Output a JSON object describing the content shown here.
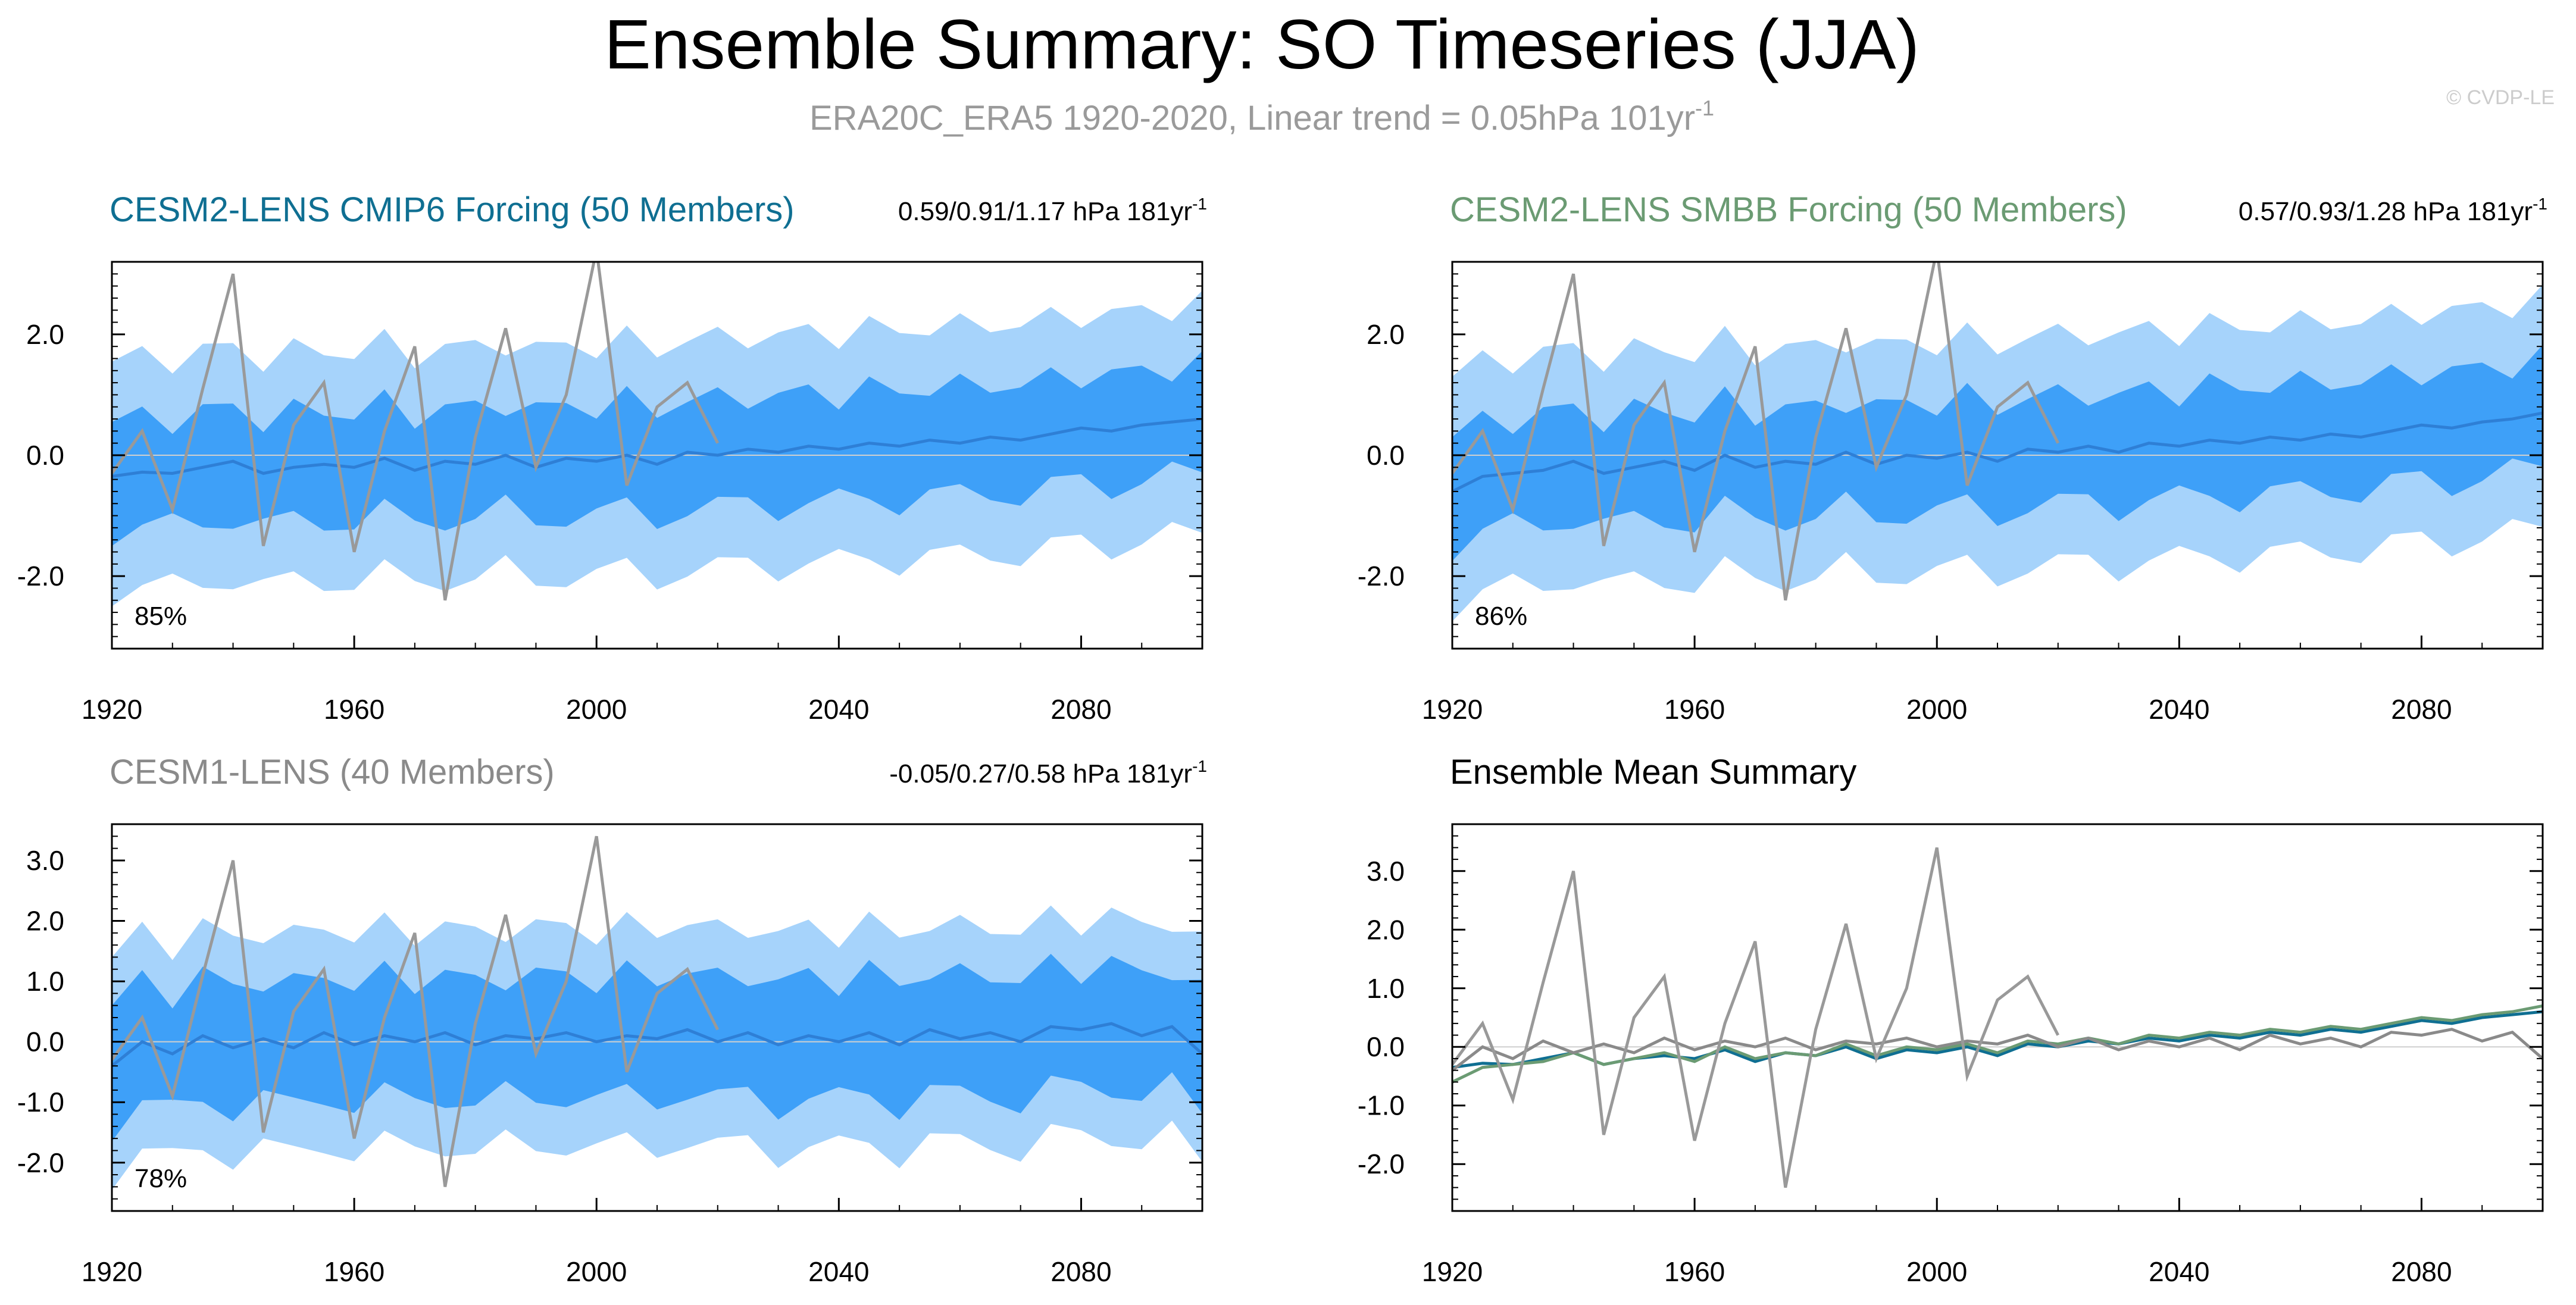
{
  "figure": {
    "title": "Ensemble Summary: SO Timeseries (JJA)",
    "subtitle": "ERA20C_ERA5 1920-2020, Linear trend = 0.05hPa 101yr",
    "subtitle_sup": "-1",
    "watermark": "© CVDP-LE",
    "colors": {
      "outer_band": "#a6d3fb",
      "inner_band": "#3ea0f8",
      "ensemble_mean": "#2e7fd6",
      "observations": "#999999",
      "cesm2_cmip6": "#0f6f92",
      "cesm2_smbb": "#6b9b73",
      "cesm1": "#8a8a8a",
      "zero_line": "#cfcfcf"
    }
  },
  "chart_data": [
    {
      "type": "area",
      "title": "CESM2-LENS CMIP6 Forcing (50 Members)",
      "trend_label": "0.59/0.91/1.17 hPa 181yr",
      "trend_sup": "-1",
      "percent_label": "85%",
      "x": [
        1920,
        1925,
        1930,
        1935,
        1940,
        1945,
        1950,
        1955,
        1960,
        1965,
        1970,
        1975,
        1980,
        1985,
        1990,
        1995,
        2000,
        2005,
        2010,
        2015,
        2020,
        2025,
        2030,
        2035,
        2040,
        2045,
        2050,
        2055,
        2060,
        2065,
        2070,
        2075,
        2080,
        2085,
        2090,
        2095,
        2100
      ],
      "mean": [
        -0.35,
        -0.28,
        -0.3,
        -0.2,
        -0.1,
        -0.3,
        -0.2,
        -0.15,
        -0.2,
        -0.05,
        -0.25,
        -0.1,
        -0.15,
        0.0,
        -0.2,
        -0.05,
        -0.1,
        0.0,
        -0.15,
        0.05,
        0.0,
        0.1,
        0.05,
        0.15,
        0.1,
        0.2,
        0.15,
        0.25,
        0.2,
        0.3,
        0.25,
        0.35,
        0.45,
        0.4,
        0.5,
        0.55,
        0.6
      ],
      "inner_halfwidth": 0.9,
      "outer_halfwidth": 1.9,
      "obs": [
        -0.3,
        0.4,
        -0.9,
        1.1,
        3.0,
        -1.5,
        0.5,
        1.2,
        -1.6,
        0.4,
        1.8,
        -2.4,
        0.3,
        2.1,
        -0.2,
        1.0,
        3.4,
        -0.5,
        0.8,
        1.2,
        0.2
      ],
      "xlim": [
        1920,
        2100
      ],
      "ylim": [
        -3.2,
        3.2
      ],
      "yticks": [
        -2.0,
        0.0,
        2.0
      ],
      "xticks": [
        1920,
        1960,
        2000,
        2040,
        2080
      ]
    },
    {
      "type": "area",
      "title": "CESM2-LENS SMBB Forcing (50 Members)",
      "trend_label": "0.57/0.93/1.28 hPa 181yr",
      "trend_sup": "-1",
      "percent_label": "86%",
      "x": [
        1920,
        1925,
        1930,
        1935,
        1940,
        1945,
        1950,
        1955,
        1960,
        1965,
        1970,
        1975,
        1980,
        1985,
        1990,
        1995,
        2000,
        2005,
        2010,
        2015,
        2020,
        2025,
        2030,
        2035,
        2040,
        2045,
        2050,
        2055,
        2060,
        2065,
        2070,
        2075,
        2080,
        2085,
        2090,
        2095,
        2100
      ],
      "mean": [
        -0.6,
        -0.35,
        -0.3,
        -0.25,
        -0.1,
        -0.3,
        -0.2,
        -0.1,
        -0.25,
        0.0,
        -0.2,
        -0.1,
        -0.15,
        0.05,
        -0.15,
        0.0,
        -0.05,
        0.05,
        -0.1,
        0.1,
        0.05,
        0.15,
        0.05,
        0.2,
        0.15,
        0.25,
        0.2,
        0.3,
        0.25,
        0.35,
        0.3,
        0.4,
        0.5,
        0.45,
        0.55,
        0.6,
        0.7
      ],
      "inner_halfwidth": 0.9,
      "outer_halfwidth": 1.9,
      "obs": [
        -0.3,
        0.4,
        -0.9,
        1.1,
        3.0,
        -1.5,
        0.5,
        1.2,
        -1.6,
        0.4,
        1.8,
        -2.4,
        0.3,
        2.1,
        -0.2,
        1.0,
        3.4,
        -0.5,
        0.8,
        1.2,
        0.2
      ],
      "xlim": [
        1920,
        2100
      ],
      "ylim": [
        -3.2,
        3.2
      ],
      "yticks": [
        -2.0,
        0.0,
        2.0
      ],
      "xticks": [
        1920,
        1960,
        2000,
        2040,
        2080
      ]
    },
    {
      "type": "area",
      "title": "CESM1-LENS (40 Members)",
      "trend_label": "-0.05/0.27/0.58 hPa 181yr",
      "trend_sup": "-1",
      "percent_label": "78%",
      "x": [
        1920,
        1925,
        1930,
        1935,
        1940,
        1945,
        1950,
        1955,
        1960,
        1965,
        1970,
        1975,
        1980,
        1985,
        1990,
        1995,
        2000,
        2005,
        2010,
        2015,
        2020,
        2025,
        2030,
        2035,
        2040,
        2045,
        2050,
        2055,
        2060,
        2065,
        2070,
        2075,
        2080,
        2085,
        2090,
        2095,
        2100
      ],
      "mean": [
        -0.4,
        0.0,
        -0.2,
        0.1,
        -0.1,
        0.05,
        -0.1,
        0.15,
        -0.05,
        0.1,
        0.0,
        0.15,
        -0.05,
        0.1,
        0.05,
        0.15,
        0.0,
        0.1,
        0.05,
        0.2,
        0.0,
        0.15,
        -0.05,
        0.1,
        0.0,
        0.15,
        -0.05,
        0.2,
        0.05,
        0.15,
        0.0,
        0.25,
        0.2,
        0.3,
        0.1,
        0.25,
        -0.2
      ],
      "inner_halfwidth": 1.0,
      "outer_halfwidth": 1.8,
      "obs": [
        -0.3,
        0.4,
        -0.9,
        1.1,
        3.0,
        -1.5,
        0.5,
        1.2,
        -1.6,
        0.4,
        1.8,
        -2.4,
        0.3,
        2.1,
        -0.2,
        1.0,
        3.4,
        -0.5,
        0.8,
        1.2,
        0.2
      ],
      "xlim": [
        1920,
        2100
      ],
      "ylim": [
        -2.8,
        3.6
      ],
      "yticks": [
        -2.0,
        -1.0,
        0.0,
        1.0,
        2.0,
        3.0
      ],
      "xticks": [
        1920,
        1960,
        2000,
        2040,
        2080
      ]
    },
    {
      "type": "line",
      "title": "Ensemble Mean Summary",
      "x": [
        1920,
        1925,
        1930,
        1935,
        1940,
        1945,
        1950,
        1955,
        1960,
        1965,
        1970,
        1975,
        1980,
        1985,
        1990,
        1995,
        2000,
        2005,
        2010,
        2015,
        2020,
        2025,
        2030,
        2035,
        2040,
        2045,
        2050,
        2055,
        2060,
        2065,
        2070,
        2075,
        2080,
        2085,
        2090,
        2095,
        2100
      ],
      "series": [
        {
          "name": "CESM2-LENS CMIP6 Forcing",
          "color_key": "cesm2_cmip6",
          "values": [
            -0.35,
            -0.28,
            -0.3,
            -0.2,
            -0.1,
            -0.3,
            -0.2,
            -0.15,
            -0.2,
            -0.05,
            -0.25,
            -0.1,
            -0.15,
            0.0,
            -0.2,
            -0.05,
            -0.1,
            0.0,
            -0.15,
            0.05,
            0.0,
            0.1,
            0.05,
            0.15,
            0.1,
            0.2,
            0.15,
            0.25,
            0.2,
            0.3,
            0.25,
            0.35,
            0.45,
            0.4,
            0.5,
            0.55,
            0.6
          ]
        },
        {
          "name": "CESM2-LENS SMBB Forcing",
          "color_key": "cesm2_smbb",
          "values": [
            -0.6,
            -0.35,
            -0.3,
            -0.25,
            -0.1,
            -0.3,
            -0.2,
            -0.1,
            -0.25,
            0.0,
            -0.2,
            -0.1,
            -0.15,
            0.05,
            -0.15,
            0.0,
            -0.05,
            0.05,
            -0.1,
            0.1,
            0.05,
            0.15,
            0.05,
            0.2,
            0.15,
            0.25,
            0.2,
            0.3,
            0.25,
            0.35,
            0.3,
            0.4,
            0.5,
            0.45,
            0.55,
            0.6,
            0.7
          ]
        },
        {
          "name": "CESM1-LENS",
          "color_key": "cesm1",
          "values": [
            -0.4,
            0.0,
            -0.2,
            0.1,
            -0.1,
            0.05,
            -0.1,
            0.15,
            -0.05,
            0.1,
            0.0,
            0.15,
            -0.05,
            0.1,
            0.05,
            0.15,
            0.0,
            0.1,
            0.05,
            0.2,
            0.0,
            0.15,
            -0.05,
            0.1,
            0.0,
            0.15,
            -0.05,
            0.2,
            0.05,
            0.15,
            0.0,
            0.25,
            0.2,
            0.3,
            0.1,
            0.25,
            -0.2
          ]
        },
        {
          "name": "ERA20C_ERA5",
          "color_key": "observations",
          "x": [
            1920,
            1925,
            1930,
            1935,
            1940,
            1945,
            1950,
            1955,
            1960,
            1965,
            1970,
            1975,
            1980,
            1985,
            1990,
            1995,
            2000,
            2005,
            2010,
            2015,
            2020
          ],
          "values": [
            -0.3,
            0.4,
            -0.9,
            1.1,
            3.0,
            -1.5,
            0.5,
            1.2,
            -1.6,
            0.4,
            1.8,
            -2.4,
            0.3,
            2.1,
            -0.2,
            1.0,
            3.4,
            -0.5,
            0.8,
            1.2,
            0.2
          ]
        }
      ],
      "xlim": [
        1920,
        2100
      ],
      "ylim": [
        -2.8,
        3.8
      ],
      "yticks": [
        -2.0,
        -1.0,
        0.0,
        1.0,
        2.0,
        3.0
      ],
      "xticks": [
        1920,
        1960,
        2000,
        2040,
        2080
      ]
    }
  ]
}
